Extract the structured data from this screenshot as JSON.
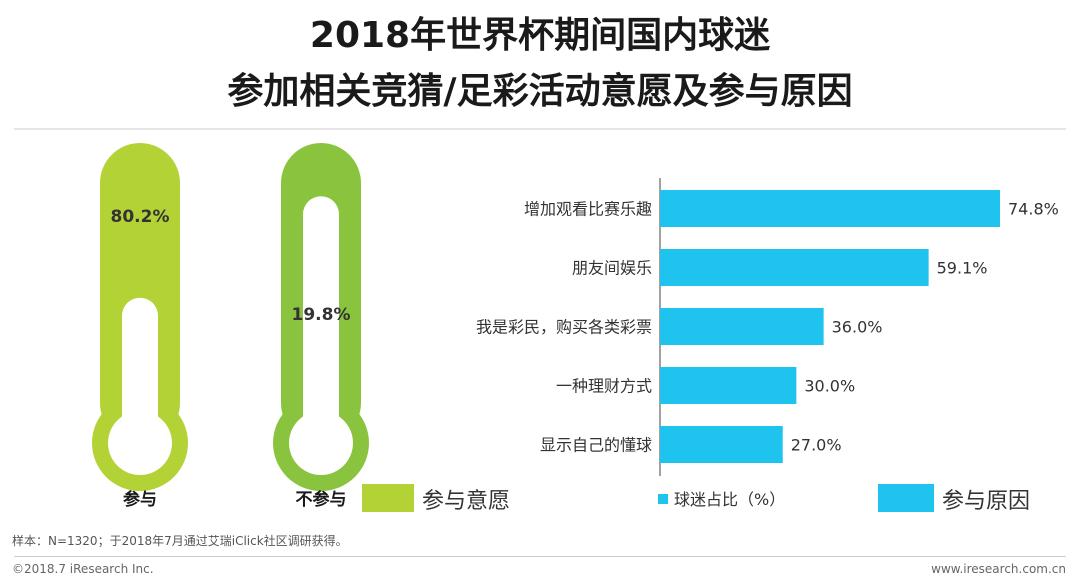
{
  "header": {
    "title_line1": "2018年世界杯期间国内球迷",
    "title_line2": "参加相关竞猜/足彩活动意愿及参与原因"
  },
  "chart_data": [
    {
      "type": "thermometer",
      "title": "",
      "legend_label": "参与意愿",
      "items": [
        {
          "label": "参与",
          "value": 80.2,
          "display": "80.2%",
          "color": "#b3d235"
        },
        {
          "label": "不参与",
          "value": 19.8,
          "display": "19.8%",
          "color": "#8ac43f"
        }
      ],
      "unit": "%"
    },
    {
      "type": "bar",
      "orientation": "horizontal",
      "title": "",
      "legend_label": "参与原因",
      "series_label": "球迷占比（%）",
      "categories": [
        "增加观看比赛乐趣",
        "朋友间娱乐",
        "我是彩民，购买各类彩票",
        "一种理财方式",
        "显示自己的懂球"
      ],
      "values": [
        74.8,
        59.1,
        36.0,
        30.0,
        27.0
      ],
      "value_labels": [
        "74.8%",
        "59.1%",
        "36.0%",
        "30.0%",
        "27.0%"
      ],
      "xlim": [
        0,
        100
      ],
      "bar_color": "#1ec3ee"
    }
  ],
  "footer": {
    "note": "样本：N=1320；于2018年7月通过艾瑞iClick社区调研获得。",
    "copyright": "©2018.7 iResearch Inc.",
    "website": "www.iresearch.com.cn"
  }
}
